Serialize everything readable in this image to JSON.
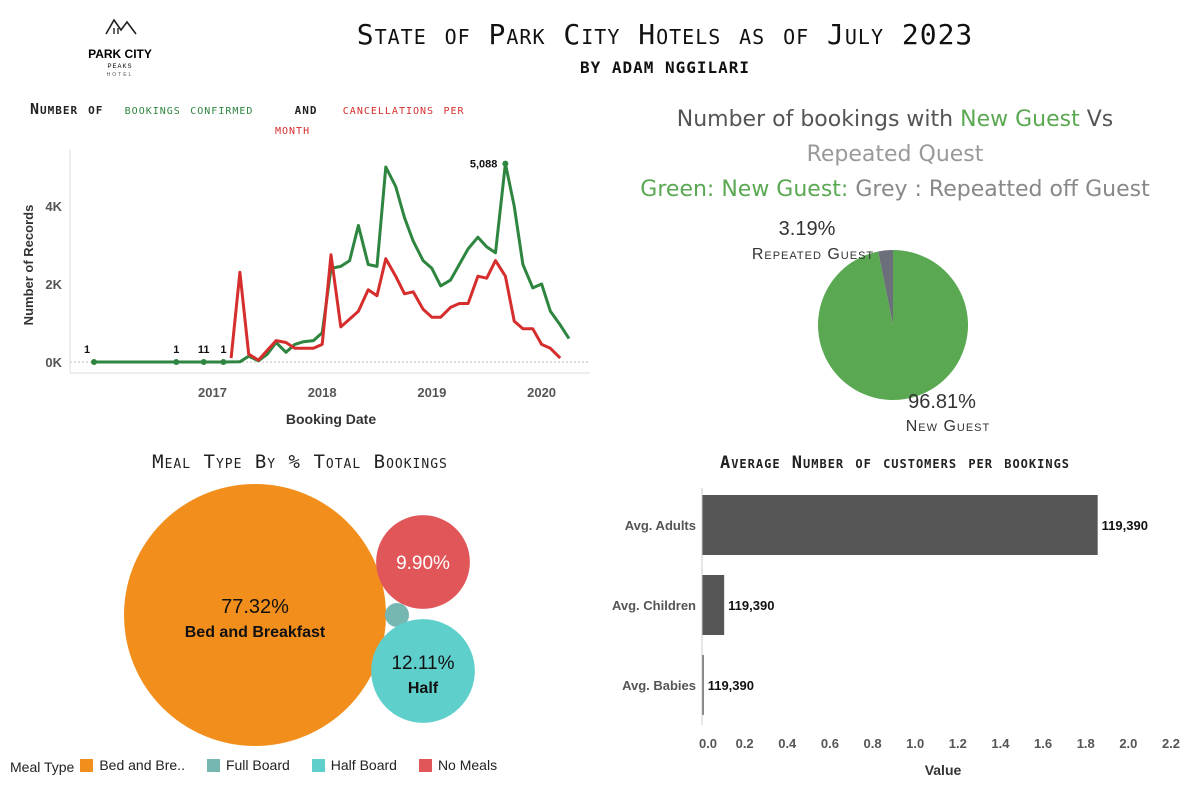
{
  "header": {
    "title": "State of Park City Hotels as of July 2023",
    "subtitle": "BY ADAM NGGILARI",
    "logo": {
      "line1": "PARK CITY",
      "line2": "PEAKS",
      "line3": "HOTEL"
    }
  },
  "colors": {
    "green": "#2e8540",
    "red": "#d62d2d",
    "grey": "#6b6f7a",
    "pie_green": "#5ba853",
    "orange": "#f28e1c",
    "teal_full": "#76b7b2",
    "teal_half": "#5fcfcc",
    "no_meals": "#e15759",
    "bar": "#555555"
  },
  "line_panel": {
    "title_prefix": "Number of",
    "title_green": "bookings confirmed",
    "title_and": "and",
    "title_red": "cancellations per",
    "title_red2": "month"
  },
  "pie_panel": {
    "title_l1_a": "Number of bookings with",
    "title_l1_b": "New Guest",
    "title_l1_c": "Vs",
    "title_l2": "Repeated Quest",
    "title_l3_a": "Green: New Guest:",
    "title_l3_b": "Grey : Repeatted off Guest"
  },
  "meal_panel": {
    "title": "Meal Type By % Total Bookings"
  },
  "avg_panel": {
    "title": "Average Number of customers per bookings"
  },
  "chart_data": [
    {
      "type": "line",
      "xlabel": "Booking Date",
      "ylabel": "Number of Records",
      "x_ticks": [
        "2017",
        "2018",
        "2019",
        "2020"
      ],
      "y_ticks": [
        "0K",
        "2K",
        "4K"
      ],
      "ylim": [
        0,
        5300
      ],
      "series": [
        {
          "name": "bookings confirmed",
          "color": "#2e8540",
          "points": [
            [
              2016.42,
              1
            ],
            [
              2017.17,
              1
            ],
            [
              2017.42,
              1
            ],
            [
              2017.45,
              1
            ],
            [
              2017.6,
              1
            ],
            [
              2017.75,
              5
            ],
            [
              2017.83,
              150
            ],
            [
              2017.92,
              30
            ],
            [
              2018.0,
              200
            ],
            [
              2018.08,
              500
            ],
            [
              2018.17,
              250
            ],
            [
              2018.25,
              450
            ],
            [
              2018.33,
              520
            ],
            [
              2018.42,
              550
            ],
            [
              2018.5,
              750
            ],
            [
              2018.58,
              2400
            ],
            [
              2018.67,
              2450
            ],
            [
              2018.75,
              2600
            ],
            [
              2018.83,
              3500
            ],
            [
              2018.92,
              2500
            ],
            [
              2019.0,
              2450
            ],
            [
              2019.08,
              5000
            ],
            [
              2019.17,
              4500
            ],
            [
              2019.25,
              3700
            ],
            [
              2019.33,
              3100
            ],
            [
              2019.42,
              2600
            ],
            [
              2019.5,
              2400
            ],
            [
              2019.58,
              1950
            ],
            [
              2019.67,
              2100
            ],
            [
              2019.75,
              2500
            ],
            [
              2019.83,
              2900
            ],
            [
              2019.92,
              3200
            ],
            [
              2020.0,
              2950
            ],
            [
              2020.08,
              2800
            ],
            [
              2020.17,
              5088
            ],
            [
              2020.25,
              4000
            ],
            [
              2020.33,
              2500
            ],
            [
              2020.42,
              1900
            ],
            [
              2020.5,
              2000
            ],
            [
              2020.58,
              1300
            ],
            [
              2020.67,
              950
            ],
            [
              2020.75,
              600
            ]
          ]
        },
        {
          "name": "cancellations",
          "color": "#d62d2d",
          "points": [
            [
              2017.67,
              100
            ],
            [
              2017.75,
              2300
            ],
            [
              2017.83,
              200
            ],
            [
              2017.92,
              50
            ],
            [
              2018.0,
              300
            ],
            [
              2018.08,
              550
            ],
            [
              2018.17,
              500
            ],
            [
              2018.25,
              350
            ],
            [
              2018.33,
              350
            ],
            [
              2018.42,
              350
            ],
            [
              2018.5,
              450
            ],
            [
              2018.58,
              2750
            ],
            [
              2018.67,
              900
            ],
            [
              2018.75,
              1100
            ],
            [
              2018.83,
              1300
            ],
            [
              2018.92,
              1850
            ],
            [
              2019.0,
              1700
            ],
            [
              2019.08,
              2650
            ],
            [
              2019.17,
              2200
            ],
            [
              2019.25,
              1750
            ],
            [
              2019.33,
              1800
            ],
            [
              2019.42,
              1350
            ],
            [
              2019.5,
              1150
            ],
            [
              2019.58,
              1150
            ],
            [
              2019.67,
              1400
            ],
            [
              2019.75,
              1500
            ],
            [
              2019.83,
              1500
            ],
            [
              2019.92,
              2200
            ],
            [
              2020.0,
              2150
            ],
            [
              2020.08,
              2600
            ],
            [
              2020.17,
              2200
            ],
            [
              2020.25,
              1050
            ],
            [
              2020.33,
              850
            ],
            [
              2020.42,
              850
            ],
            [
              2020.5,
              450
            ],
            [
              2020.58,
              350
            ],
            [
              2020.67,
              100
            ]
          ]
        }
      ],
      "data_labels": [
        {
          "x": 2016.42,
          "y": 1,
          "text": "1"
        },
        {
          "x": 2017.17,
          "y": 1,
          "text": "1"
        },
        {
          "x": 2017.42,
          "y": 1,
          "text": "11"
        },
        {
          "x": 2017.6,
          "y": 1,
          "text": "1"
        },
        {
          "x": 2020.17,
          "y": 5088,
          "text": "5,088"
        }
      ]
    },
    {
      "type": "pie",
      "slices": [
        {
          "name": "Repeated Guest",
          "value": 3.19,
          "label": "3.19%",
          "color": "#6b6f7a"
        },
        {
          "name": "New Guest",
          "value": 96.81,
          "label": "96.81%",
          "color": "#5ba853"
        }
      ]
    },
    {
      "type": "bubble",
      "legend_title": "Meal Type",
      "items": [
        {
          "name": "Bed and Bre..",
          "full_name": "Bed and Breakfast",
          "value": 77.32,
          "label": "77.32%",
          "color": "#f28e1c"
        },
        {
          "name": "Full Board",
          "value": 0.67,
          "label": "",
          "color": "#76b7b2"
        },
        {
          "name": "Half Board",
          "full_name": "Half",
          "value": 12.11,
          "label": "12.11%",
          "color": "#5fcfcc"
        },
        {
          "name": "No Meals",
          "value": 9.9,
          "label": "9.90%",
          "color": "#e15759"
        }
      ]
    },
    {
      "type": "bar",
      "orientation": "horizontal",
      "categories": [
        "Avg. Adults",
        "Avg. Children",
        "Avg. Babies"
      ],
      "values": [
        1.856,
        0.104,
        0.008
      ],
      "data_labels": [
        "119,390",
        "119,390",
        "119,390"
      ],
      "xlabel": "Value",
      "x_ticks": [
        "0.0",
        "0.2",
        "0.4",
        "0.6",
        "0.8",
        "1.0",
        "1.2",
        "1.4",
        "1.6",
        "1.8",
        "2.0",
        "2.2"
      ],
      "xlim": [
        0,
        2.2
      ]
    }
  ]
}
